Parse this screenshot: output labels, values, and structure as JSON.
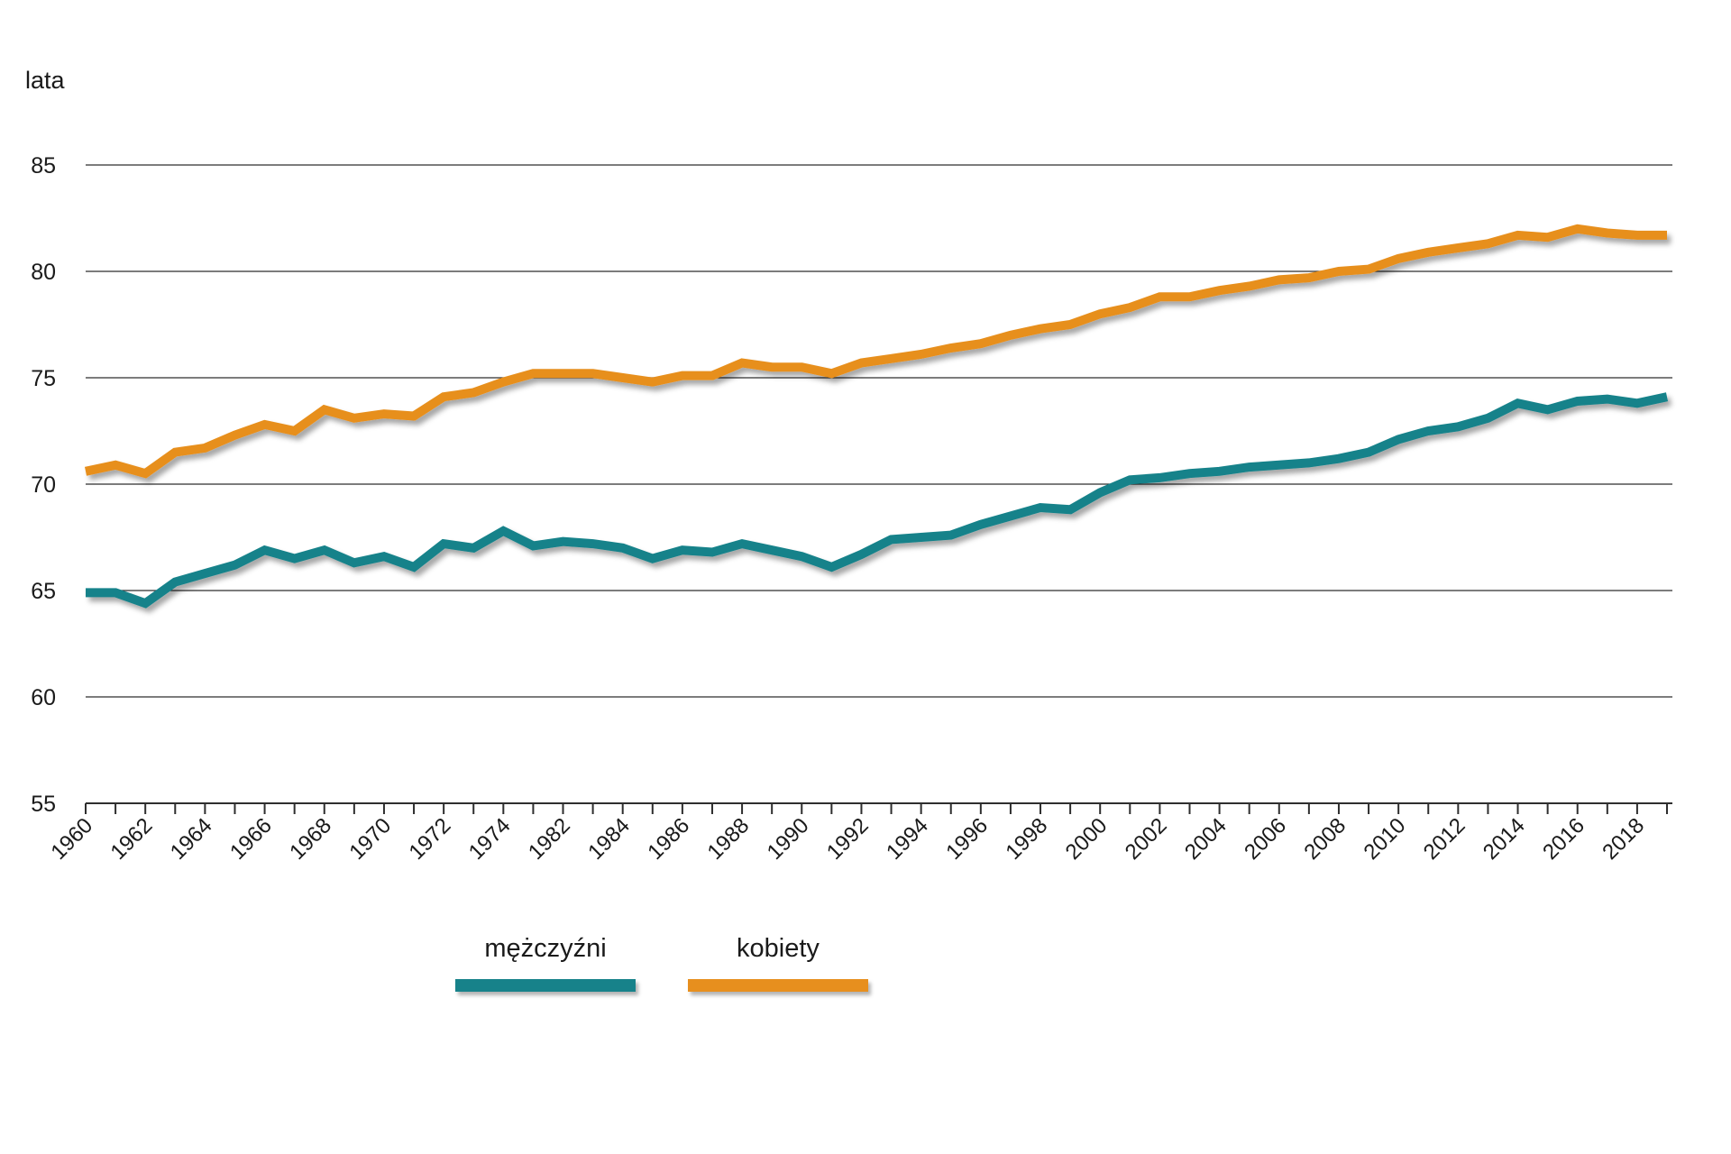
{
  "y_axis": {
    "title": "lata",
    "ticks": [
      85,
      80,
      75,
      70,
      65,
      60,
      55
    ],
    "min": 55,
    "max": 85
  },
  "chart_data": {
    "type": "line",
    "title": "",
    "ylabel": "lata",
    "xlabel": "",
    "ylim": [
      55,
      85
    ],
    "grid": "horizontal",
    "grid_color": "#2e2e2e",
    "text_color": "#1a1a1a",
    "legend_position": "bottom",
    "x_tick_label_every": 2,
    "x": [
      "1960",
      "1961",
      "1962",
      "1963",
      "1964",
      "1965",
      "1966",
      "1967",
      "1968",
      "1969",
      "1970",
      "1971",
      "1972",
      "1973",
      "1974",
      "1981",
      "1982",
      "1983",
      "1984",
      "1985",
      "1986",
      "1987",
      "1988",
      "1989",
      "1990",
      "1991",
      "1992",
      "1993",
      "1994",
      "1995",
      "1996",
      "1997",
      "1998",
      "1999",
      "2000",
      "2001",
      "2002",
      "2003",
      "2004",
      "2005",
      "2006",
      "2007",
      "2008",
      "2009",
      "2010",
      "2011",
      "2012",
      "2013",
      "2014",
      "2015",
      "2016",
      "2017",
      "2018",
      "2019"
    ],
    "x_labels_shown": [
      "1960",
      "1962",
      "1964",
      "1966",
      "1968",
      "1970",
      "1972",
      "1974",
      "1982",
      "1984",
      "1986",
      "1988",
      "1990",
      "1992",
      "1994",
      "1996",
      "1998",
      "2000",
      "2002",
      "2004",
      "2006",
      "2008",
      "2010",
      "2012",
      "2014",
      "2016",
      "2018"
    ],
    "series": [
      {
        "name": "mężczyźni",
        "color": "#17828A",
        "values": [
          64.9,
          64.9,
          64.4,
          65.4,
          65.8,
          66.2,
          66.9,
          66.5,
          66.9,
          66.3,
          66.6,
          66.1,
          67.2,
          67.0,
          67.8,
          67.1,
          67.3,
          67.2,
          67.0,
          66.5,
          66.9,
          66.8,
          67.2,
          66.9,
          66.6,
          66.1,
          66.7,
          67.4,
          67.5,
          67.6,
          68.1,
          68.5,
          68.9,
          68.8,
          69.6,
          70.2,
          70.3,
          70.5,
          70.6,
          70.8,
          70.9,
          71.0,
          71.2,
          71.5,
          72.1,
          72.5,
          72.7,
          73.1,
          73.8,
          73.5,
          73.9,
          74.0,
          73.8,
          74.1
        ]
      },
      {
        "name": "kobiety",
        "color": "#E78F1E",
        "values": [
          70.6,
          70.9,
          70.5,
          71.5,
          71.7,
          72.3,
          72.8,
          72.5,
          73.5,
          73.1,
          73.3,
          73.2,
          74.1,
          74.3,
          74.8,
          75.2,
          75.2,
          75.2,
          75.0,
          74.8,
          75.1,
          75.1,
          75.7,
          75.5,
          75.5,
          75.2,
          75.7,
          75.9,
          76.1,
          76.4,
          76.6,
          77.0,
          77.3,
          77.5,
          78.0,
          78.3,
          78.8,
          78.8,
          79.1,
          79.3,
          79.6,
          79.7,
          80.0,
          80.1,
          80.6,
          80.9,
          81.1,
          81.3,
          81.7,
          81.6,
          82.0,
          81.8,
          81.7,
          81.7
        ]
      }
    ]
  }
}
